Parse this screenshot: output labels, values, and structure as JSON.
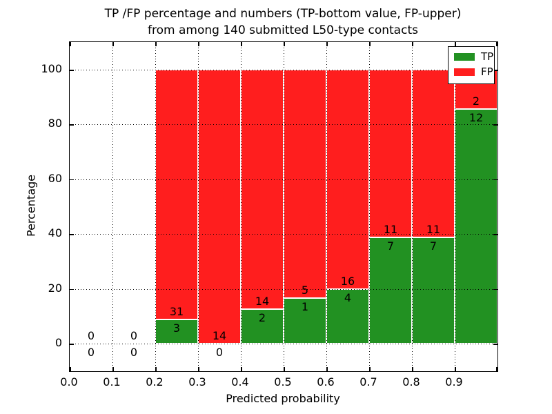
{
  "figure": {
    "title_line1": "TP /FP percentage and numbers (TP-bottom value, FP-upper)",
    "title_line2": "from among 140 submitted L50-type contacts",
    "xlabel": "Predicted probability",
    "ylabel": "Percentage"
  },
  "legend": {
    "items": [
      {
        "label": "TP",
        "color": "#229122"
      },
      {
        "label": "FP",
        "color": "#ff1e1e"
      }
    ]
  },
  "axes": {
    "x_ticks": [
      "0.0",
      "0.1",
      "0.2",
      "0.3",
      "0.4",
      "0.5",
      "0.6",
      "0.7",
      "0.8",
      "0.9"
    ],
    "y_ticks": [
      0,
      20,
      40,
      60,
      80,
      100
    ],
    "xlim": [
      0.0,
      1.0
    ],
    "ylim": [
      -10,
      110
    ],
    "grid_style": "dotted",
    "legend_position": "upper right"
  },
  "chart_data": {
    "type": "bar",
    "stacked": true,
    "title": "TP /FP percentage and numbers (TP-bottom value, FP-upper) from among 140 submitted L50-type contacts",
    "xlabel": "Predicted probability",
    "ylabel": "Percentage",
    "bin_width": 0.1,
    "categories": [
      0.0,
      0.1,
      0.2,
      0.3,
      0.4,
      0.5,
      0.6,
      0.7,
      0.8,
      0.9
    ],
    "series": [
      {
        "name": "TP",
        "color": "#229122",
        "values": [
          0,
          0,
          3,
          0,
          2,
          1,
          4,
          7,
          7,
          12
        ]
      },
      {
        "name": "FP",
        "color": "#ff1e1e",
        "values": [
          0,
          0,
          31,
          14,
          14,
          5,
          16,
          11,
          11,
          2
        ]
      }
    ],
    "bar_height_unit": "percent of bin total (TP bottom segment, FP top segment, stacked to 100%)"
  }
}
